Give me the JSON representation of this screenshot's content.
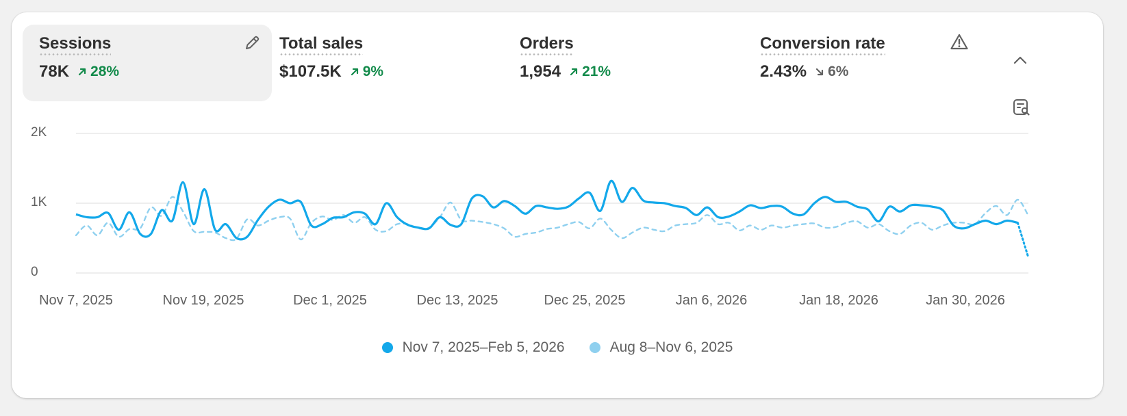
{
  "metrics": [
    {
      "title": "Sessions",
      "value": "78K",
      "delta": "28%",
      "direction": "up",
      "active": true
    },
    {
      "title": "Total sales",
      "value": "$107.5K",
      "delta": "9%",
      "direction": "up",
      "active": false
    },
    {
      "title": "Orders",
      "value": "1,954",
      "delta": "21%",
      "direction": "up",
      "active": false
    },
    {
      "title": "Conversion rate",
      "value": "2.43%",
      "delta": "6%",
      "direction": "down",
      "active": false
    }
  ],
  "icons": {
    "edit": "pencil-icon",
    "warning": "warning-triangle-icon",
    "collapse": "chevron-up-icon",
    "inspect": "document-search-icon"
  },
  "colors": {
    "current": "#13a8ea",
    "previous": "#8fd0ef",
    "up": "#128a4a",
    "down": "#616161"
  },
  "chart_data": {
    "type": "line",
    "y_ticks": [
      "2K",
      "1K",
      "0"
    ],
    "ylim": [
      0,
      2000
    ],
    "x_ticks": [
      "Nov 7, 2025",
      "Nov 19, 2025",
      "Dec 1, 2025",
      "Dec 13, 2025",
      "Dec 25, 2025",
      "Jan 6, 2026",
      "Jan 18, 2026",
      "Jan 30, 2026"
    ],
    "x_start": "Nov 7, 2025",
    "x_end": "Feb 5, 2026",
    "grid": true,
    "legend_position": "bottom",
    "series": [
      {
        "name": "Nov 7, 2025–Feb 5, 2026",
        "style": "solid",
        "last_point_dotted": true,
        "values": [
          840,
          800,
          800,
          860,
          620,
          870,
          560,
          560,
          900,
          750,
          1300,
          700,
          1200,
          620,
          700,
          500,
          520,
          760,
          950,
          1050,
          1000,
          1020,
          680,
          700,
          790,
          800,
          870,
          850,
          700,
          1000,
          800,
          690,
          650,
          640,
          800,
          690,
          700,
          1070,
          1100,
          940,
          1030,
          960,
          850,
          960,
          940,
          920,
          950,
          1070,
          1150,
          890,
          1320,
          1020,
          1220,
          1040,
          1010,
          1000,
          960,
          930,
          830,
          940,
          800,
          810,
          880,
          970,
          930,
          960,
          950,
          850,
          840,
          1000,
          1090,
          1020,
          1020,
          950,
          910,
          740,
          950,
          880,
          970,
          970,
          950,
          900,
          680,
          640,
          700,
          750,
          700,
          750,
          720,
          220
        ]
      },
      {
        "name": "Aug 8–Nov 6, 2025",
        "style": "dashed",
        "values": [
          540,
          680,
          540,
          720,
          520,
          630,
          640,
          940,
          820,
          1090,
          880,
          600,
          590,
          580,
          500,
          490,
          770,
          680,
          750,
          800,
          780,
          480,
          720,
          810,
          760,
          830,
          720,
          800,
          620,
          600,
          700,
          700,
          640,
          650,
          800,
          1010,
          760,
          750,
          730,
          700,
          640,
          520,
          560,
          580,
          630,
          650,
          700,
          730,
          640,
          780,
          620,
          500,
          580,
          650,
          620,
          600,
          680,
          700,
          720,
          830,
          700,
          720,
          610,
          680,
          620,
          680,
          650,
          680,
          700,
          710,
          650,
          660,
          720,
          740,
          650,
          700,
          600,
          560,
          680,
          720,
          620,
          680,
          720,
          720,
          700,
          860,
          960,
          830,
          1050,
          820
        ]
      }
    ]
  },
  "legend": {
    "current_label": "Nov 7, 2025–Feb 5, 2026",
    "previous_label": "Aug 8–Nov 6, 2025"
  }
}
